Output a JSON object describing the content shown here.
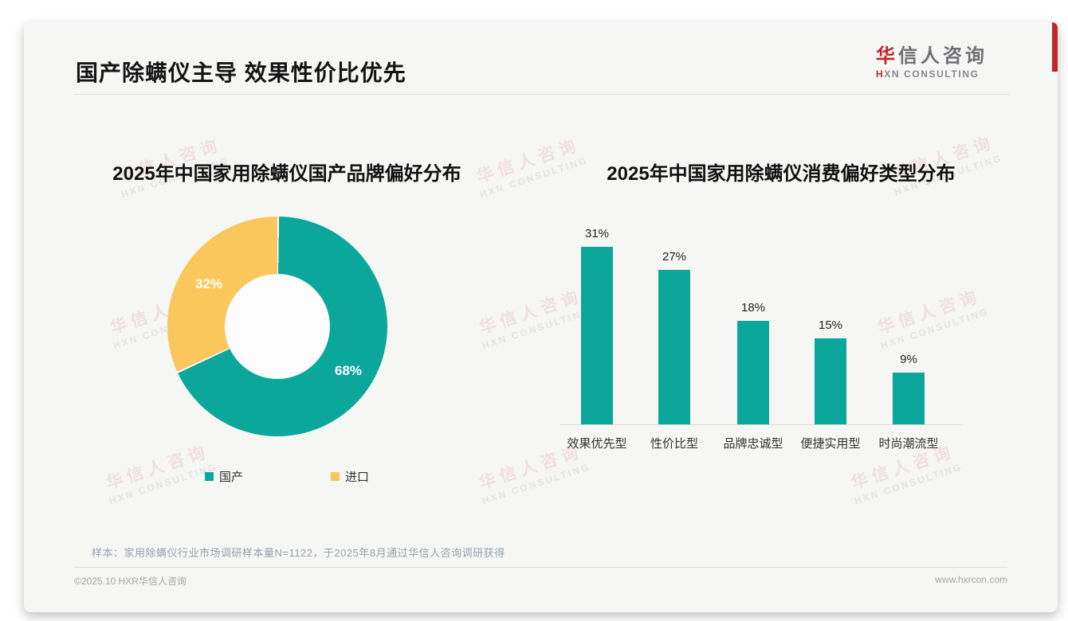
{
  "page": {
    "title": "国产除螨仪主导 效果性价比优先",
    "logo": {
      "cn_first": "华",
      "cn_rest": "信人咨询",
      "en_first": "H",
      "en_rest": "XN CONSULTING"
    },
    "watermark": {
      "line1": "华信人咨询",
      "line2": "HXN CONSULTING"
    },
    "sample_note": "样本：家用除螨仪行业市场调研样本量N=1122，于2025年8月通过华信人咨询调研获得",
    "footer_left": "©2025.10 HXR华信人咨询",
    "footer_right": "www.hxrcon.com"
  },
  "colors": {
    "teal": "#0BA79B",
    "yellow": "#F9C75C",
    "brand_red": "#C0272D"
  },
  "chart_data": [
    {
      "type": "pie",
      "subtype": "donut",
      "title": "2025年中国家用除螨仪国产品牌偏好分布",
      "start_angle_deg": 0,
      "direction": "clockwise",
      "legend_position": "bottom",
      "slices": [
        {
          "label": "国产",
          "value": 68,
          "value_label": "68%",
          "color": "#0BA79B"
        },
        {
          "label": "进口",
          "value": 32,
          "value_label": "32%",
          "color": "#F9C75C"
        }
      ]
    },
    {
      "type": "bar",
      "title": "2025年中国家用除螨仪消费偏好类型分布",
      "categories": [
        "效果优先型",
        "性价比型",
        "品牌忠诚型",
        "便捷实用型",
        "时尚潮流型"
      ],
      "values": [
        31,
        27,
        18,
        15,
        9
      ],
      "value_labels": [
        "31%",
        "27%",
        "18%",
        "15%",
        "9%"
      ],
      "value_unit": "%",
      "bar_color": "#0BA79B",
      "ylim": [
        0,
        33
      ],
      "grid": false,
      "axis_labels_hidden": true
    }
  ]
}
